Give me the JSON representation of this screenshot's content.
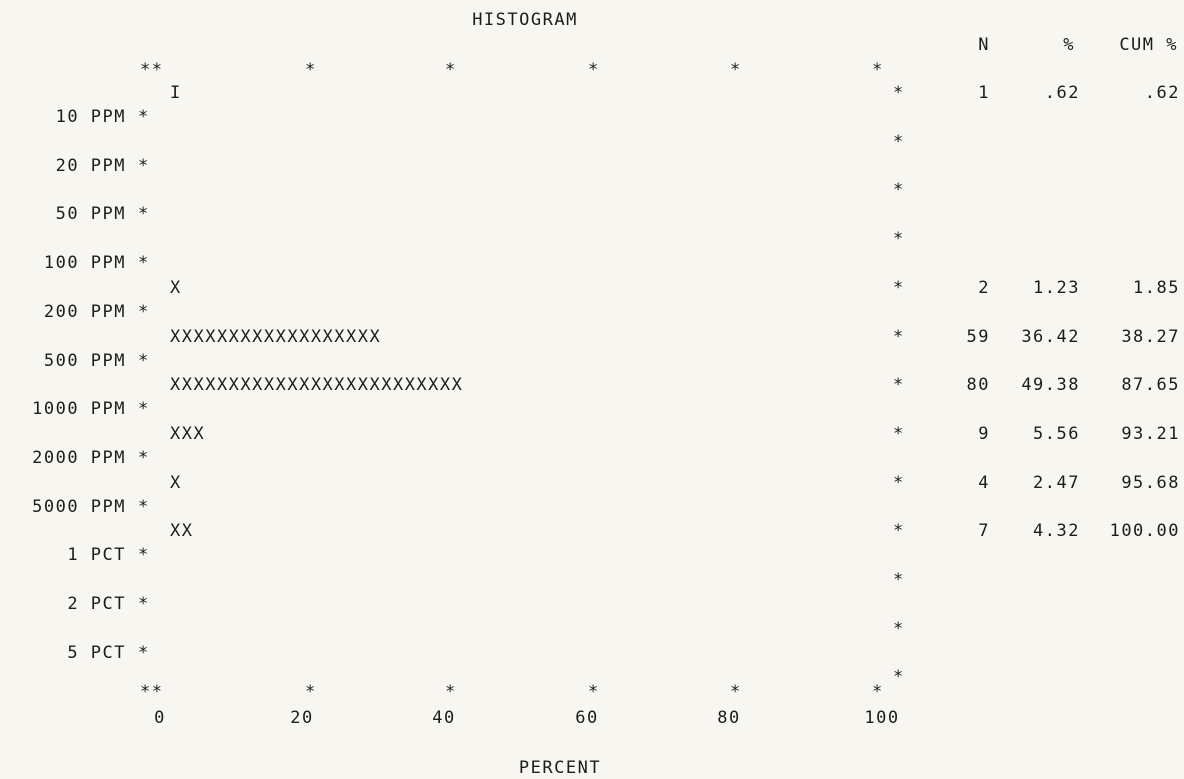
{
  "chart_data": {
    "type": "bar",
    "orientation": "horizontal",
    "title": "HISTOGRAM",
    "xlabel": "PERCENT",
    "ylabel": "",
    "xlim": [
      0,
      100
    ],
    "x_ticks": [
      "0",
      "20",
      "40",
      "60",
      "80",
      "100"
    ],
    "grid": false,
    "bar_symbol": "X",
    "lower_marker": "I",
    "table_headers": [
      "N",
      "%",
      "CUM %"
    ],
    "boundary_labels": [
      "10 PPM",
      "20 PPM",
      "50 PPM",
      "100 PPM",
      "200 PPM",
      "500 PPM",
      "1000 PPM",
      "2000 PPM",
      "5000 PPM",
      "1 PCT",
      "2 PCT",
      "5 PCT"
    ],
    "bins": [
      {
        "bars": "I",
        "n": "1",
        "pct": ".62",
        "cum": ".62"
      },
      {
        "bars": "",
        "n": "",
        "pct": "",
        "cum": ""
      },
      {
        "bars": "",
        "n": "",
        "pct": "",
        "cum": ""
      },
      {
        "bars": "",
        "n": "",
        "pct": "",
        "cum": ""
      },
      {
        "bars": "X",
        "n": "2",
        "pct": "1.23",
        "cum": "1.85"
      },
      {
        "bars": "XXXXXXXXXXXXXXXXXX",
        "n": "59",
        "pct": "36.42",
        "cum": "38.27"
      },
      {
        "bars": "XXXXXXXXXXXXXXXXXXXXXXXXX",
        "n": "80",
        "pct": "49.38",
        "cum": "87.65"
      },
      {
        "bars": "XXX",
        "n": "9",
        "pct": "5.56",
        "cum": "93.21"
      },
      {
        "bars": "X",
        "n": "4",
        "pct": "2.47",
        "cum": "95.68"
      },
      {
        "bars": "XX",
        "n": "7",
        "pct": "4.32",
        "cum": "100.00"
      },
      {
        "bars": "",
        "n": "",
        "pct": "",
        "cum": ""
      },
      {
        "bars": "",
        "n": "",
        "pct": "",
        "cum": ""
      },
      {
        "bars": "",
        "n": "",
        "pct": "",
        "cum": ""
      }
    ]
  }
}
